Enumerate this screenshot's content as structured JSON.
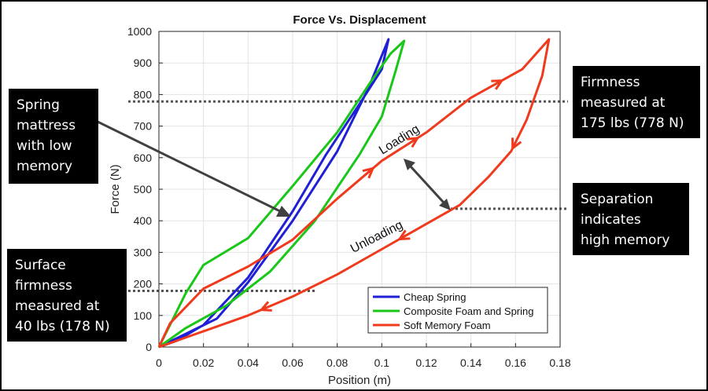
{
  "chart_data": {
    "type": "line",
    "title": "Force Vs. Displacement",
    "xlabel": "Position (m)",
    "ylabel": "Force (N)",
    "xlim": [
      0,
      0.18
    ],
    "ylim": [
      0,
      1000
    ],
    "xticks": [
      "0",
      "0.02",
      "0.04",
      "0.06",
      "0.08",
      "0.1",
      "0.12",
      "0.14",
      "0.16",
      "0.18"
    ],
    "yticks": [
      "0",
      "100",
      "200",
      "300",
      "400",
      "500",
      "600",
      "700",
      "800",
      "900",
      "1000"
    ],
    "grid": true,
    "legend_position": "bottom-right",
    "series": [
      {
        "name": "Cheap Spring",
        "color": "#1f1fd6",
        "x": [
          0,
          0.026,
          0.04,
          0.06,
          0.08,
          0.094,
          0.103,
          0.1,
          0.09,
          0.075,
          0.06,
          0.04,
          0.02,
          0.008,
          0
        ],
        "y": [
          0,
          90,
          205,
          400,
          620,
          820,
          975,
          880,
          770,
          610,
          430,
          220,
          70,
          20,
          0
        ]
      },
      {
        "name": "Composite Foam and Spring",
        "color": "#19c719",
        "x": [
          0,
          0.005,
          0.012,
          0.02,
          0.04,
          0.06,
          0.08,
          0.095,
          0.104,
          0.11,
          0.106,
          0.1,
          0.09,
          0.07,
          0.05,
          0.03,
          0.012,
          0
        ],
        "y": [
          0,
          70,
          170,
          260,
          345,
          510,
          680,
          840,
          930,
          970,
          870,
          730,
          610,
          400,
          240,
          130,
          60,
          0
        ]
      },
      {
        "name": "Soft Memory Foam",
        "color": "#f03a1e",
        "x": [
          0,
          0.005,
          0.02,
          0.04,
          0.06,
          0.08,
          0.1,
          0.12,
          0.14,
          0.163,
          0.175,
          0.172,
          0.165,
          0.158,
          0.148,
          0.135,
          0.12,
          0.1,
          0.08,
          0.06,
          0.04,
          0.02,
          0
        ],
        "y": [
          0,
          75,
          185,
          255,
          340,
          470,
          590,
          680,
          790,
          880,
          975,
          860,
          720,
          620,
          540,
          450,
          390,
          310,
          230,
          160,
          100,
          50,
          0
        ]
      }
    ],
    "annotations": [
      {
        "text": "Loading"
      },
      {
        "text": "Unloading"
      }
    ],
    "reference_lines": [
      {
        "y": 778
      },
      {
        "y": 178
      },
      {
        "y": 438
      }
    ]
  },
  "callouts": {
    "spring": "Spring\nmattress\nwith low\nmemory",
    "firmness": "Firmness\nmeasured at\n175 lbs (778 N)",
    "separation": "Separation\nindicates\nhigh memory",
    "surface": "Surface\nfirmness\nmeasured at\n40 lbs (178 N)"
  }
}
